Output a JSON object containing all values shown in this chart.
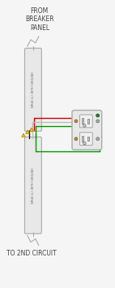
{
  "bg_color": "#f5f5f5",
  "title_text": "FROM\nBREAKER\nPANEL",
  "bottom_text": "TO 2ND CIRCUIT",
  "cable_label_top": "NM-B (2-) WITH GROUND",
  "cable_label_bottom": "NM-B (2-) WITH GROUND",
  "conduit_color": "#e8e8e8",
  "conduit_border": "#aaaaaa",
  "black_wire": "#1a1a1a",
  "white_wire": "#bbbbbb",
  "red_wire": "#cc0000",
  "green_wire": "#009900",
  "outlet_body": "#e8e8e8",
  "outlet_border": "#aaaaaa",
  "wire_nut_color": "#f0d000",
  "screw_hot": "#cc8800",
  "screw_ground": "#009900"
}
